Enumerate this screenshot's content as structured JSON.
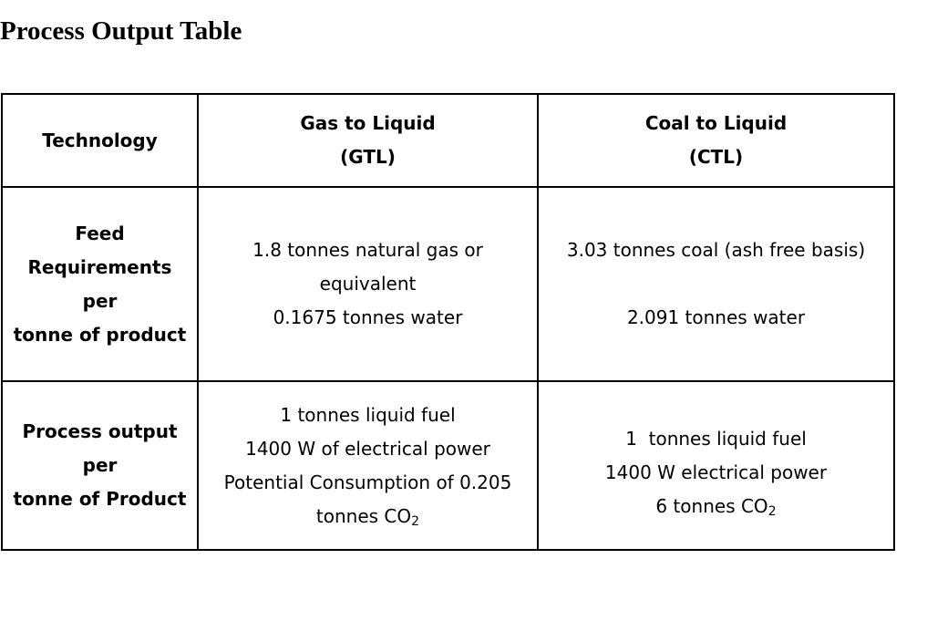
{
  "title": "Process Output Table",
  "table": {
    "header": {
      "technology": "Technology",
      "gtl": {
        "line1": "Gas to Liquid",
        "line2": "(GTL)"
      },
      "ctl": {
        "line1": "Coal to Liquid",
        "line2": "(CTL)"
      }
    },
    "feed": {
      "label": [
        "Feed",
        "Requirements",
        "per",
        "tonne of product"
      ],
      "gtl": [
        "1.8 tonnes natural gas or",
        "equivalent",
        "0.1675 tonnes water"
      ],
      "ctl": [
        "3.03 tonnes coal (ash free basis)",
        "2.091 tonnes water"
      ]
    },
    "output": {
      "label": [
        "Process output",
        "per",
        "tonne of Product"
      ],
      "gtl": {
        "line1": "1 tonnes liquid fuel",
        "line2": "1400 W of electrical power",
        "line3": "Potential Consumption of 0.205",
        "line4_prefix": "tonnes CO",
        "line4_sub": "2"
      },
      "ctl": {
        "line1": "1  tonnes liquid fuel",
        "line2": "1400 W electrical power",
        "line3_prefix": "6 tonnes CO",
        "line3_sub": "2"
      }
    }
  }
}
